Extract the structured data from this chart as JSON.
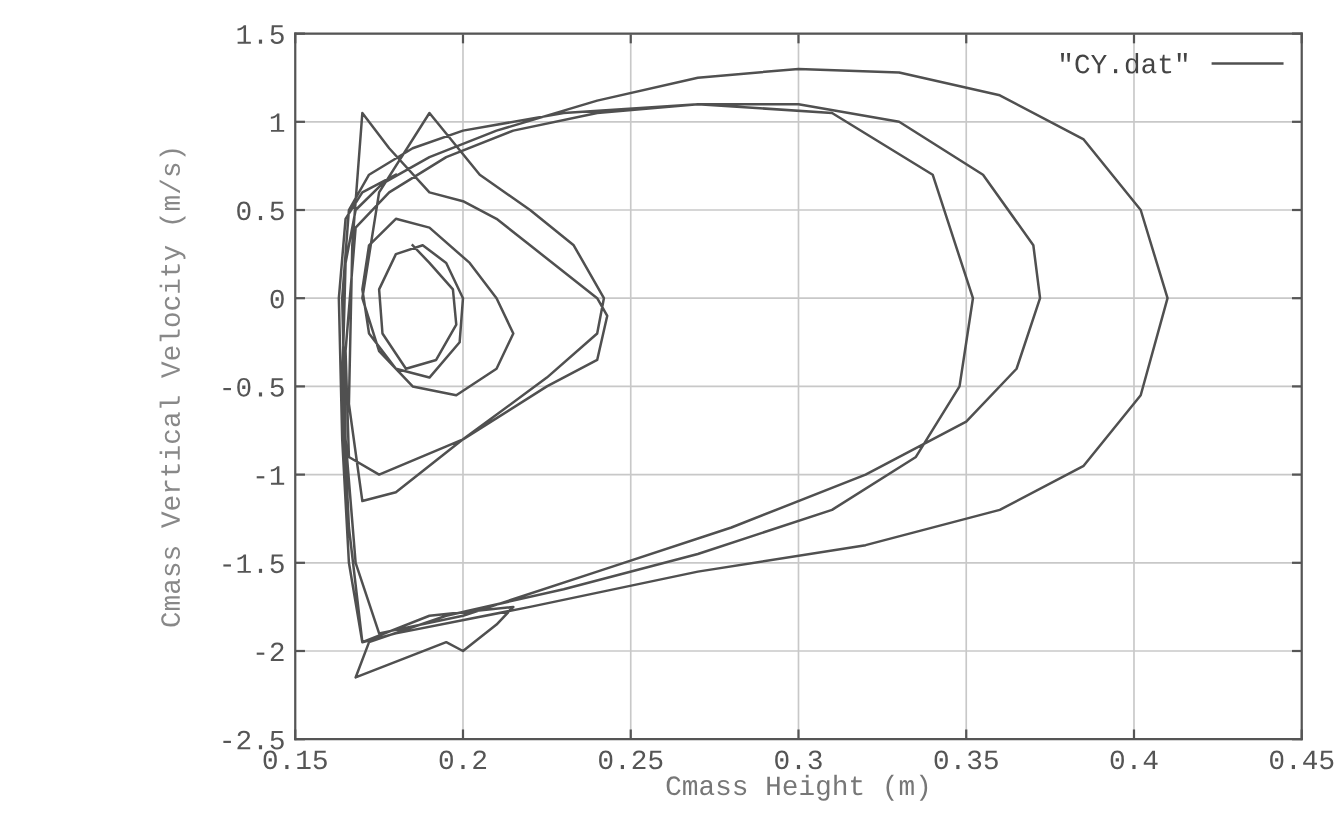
{
  "chart_data": {
    "type": "line",
    "xlabel": "Cmass Height (m)",
    "ylabel": "Cmass Vertical Velocity (m/s)",
    "xlim": [
      0.15,
      0.45
    ],
    "ylim": [
      -2.5,
      1.5
    ],
    "xticks": [
      0.15,
      0.2,
      0.25,
      0.3,
      0.35,
      0.4,
      0.45
    ],
    "yticks": [
      -2.5,
      -2,
      -1.5,
      -1,
      -0.5,
      0,
      0.5,
      1,
      1.5
    ],
    "grid": true,
    "legend": "top right",
    "marker": "none",
    "line_style": "solid",
    "series": [
      {
        "name": "\"CY.dat\"",
        "color": "#505050",
        "x": [
          0.185,
          0.19,
          0.197,
          0.198,
          0.192,
          0.183,
          0.176,
          0.175,
          0.18,
          0.188,
          0.195,
          0.2,
          0.199,
          0.19,
          0.18,
          0.172,
          0.17,
          0.172,
          0.18,
          0.19,
          0.202,
          0.21,
          0.215,
          0.21,
          0.198,
          0.185,
          0.175,
          0.17,
          0.175,
          0.19,
          0.205,
          0.22,
          0.233,
          0.242,
          0.24,
          0.225,
          0.2,
          0.18,
          0.17,
          0.166,
          0.167,
          0.17,
          0.178,
          0.19,
          0.2,
          0.21,
          0.22,
          0.23,
          0.24,
          0.243,
          0.24,
          0.225,
          0.2,
          0.175,
          0.166,
          0.165,
          0.168,
          0.178,
          0.195,
          0.215,
          0.24,
          0.27,
          0.3,
          0.33,
          0.355,
          0.37,
          0.372,
          0.365,
          0.35,
          0.32,
          0.28,
          0.24,
          0.2,
          0.175,
          0.168,
          0.165,
          0.164,
          0.166,
          0.172,
          0.185,
          0.2,
          0.23,
          0.27,
          0.31,
          0.34,
          0.352,
          0.348,
          0.335,
          0.31,
          0.27,
          0.23,
          0.195,
          0.172,
          0.168,
          0.195,
          0.2,
          0.21,
          0.215,
          0.19,
          0.17,
          0.166,
          0.164,
          0.165,
          0.168,
          0.176,
          0.19,
          0.21,
          0.24,
          0.27,
          0.3,
          0.33,
          0.36,
          0.385,
          0.402,
          0.41,
          0.402,
          0.385,
          0.36,
          0.32,
          0.27,
          0.22,
          0.18,
          0.17,
          0.166,
          0.164,
          0.163,
          0.165,
          0.17,
          0.18
        ],
        "values": [
          0.3,
          0.2,
          0.05,
          -0.15,
          -0.35,
          -0.4,
          -0.2,
          0.05,
          0.25,
          0.3,
          0.2,
          0.0,
          -0.25,
          -0.45,
          -0.4,
          -0.2,
          0.05,
          0.3,
          0.45,
          0.4,
          0.2,
          0.0,
          -0.2,
          -0.4,
          -0.55,
          -0.5,
          -0.3,
          0.0,
          0.6,
          1.05,
          0.7,
          0.5,
          0.3,
          0.0,
          -0.2,
          -0.45,
          -0.8,
          -1.1,
          -1.15,
          -0.6,
          0.3,
          1.05,
          0.85,
          0.6,
          0.55,
          0.45,
          0.3,
          0.15,
          0.0,
          -0.1,
          -0.35,
          -0.5,
          -0.8,
          -1.0,
          -0.9,
          -0.3,
          0.4,
          0.6,
          0.8,
          0.95,
          1.05,
          1.1,
          1.1,
          1.0,
          0.7,
          0.3,
          0.0,
          -0.4,
          -0.7,
          -1.0,
          -1.3,
          -1.55,
          -1.8,
          -1.9,
          -1.5,
          -0.8,
          0.0,
          0.5,
          0.7,
          0.85,
          0.95,
          1.05,
          1.1,
          1.05,
          0.7,
          0.0,
          -0.5,
          -0.9,
          -1.2,
          -1.45,
          -1.65,
          -1.8,
          -1.95,
          -2.15,
          -1.95,
          -2.0,
          -1.85,
          -1.75,
          -1.8,
          -1.95,
          -1.3,
          -0.5,
          0.2,
          0.5,
          0.65,
          0.8,
          0.95,
          1.12,
          1.25,
          1.3,
          1.28,
          1.15,
          0.9,
          0.5,
          0.0,
          -0.55,
          -0.95,
          -1.2,
          -1.4,
          -1.55,
          -1.75,
          -1.9,
          -1.95,
          -1.5,
          -0.8,
          0.0,
          0.45,
          0.6,
          0.7
        ]
      }
    ]
  }
}
